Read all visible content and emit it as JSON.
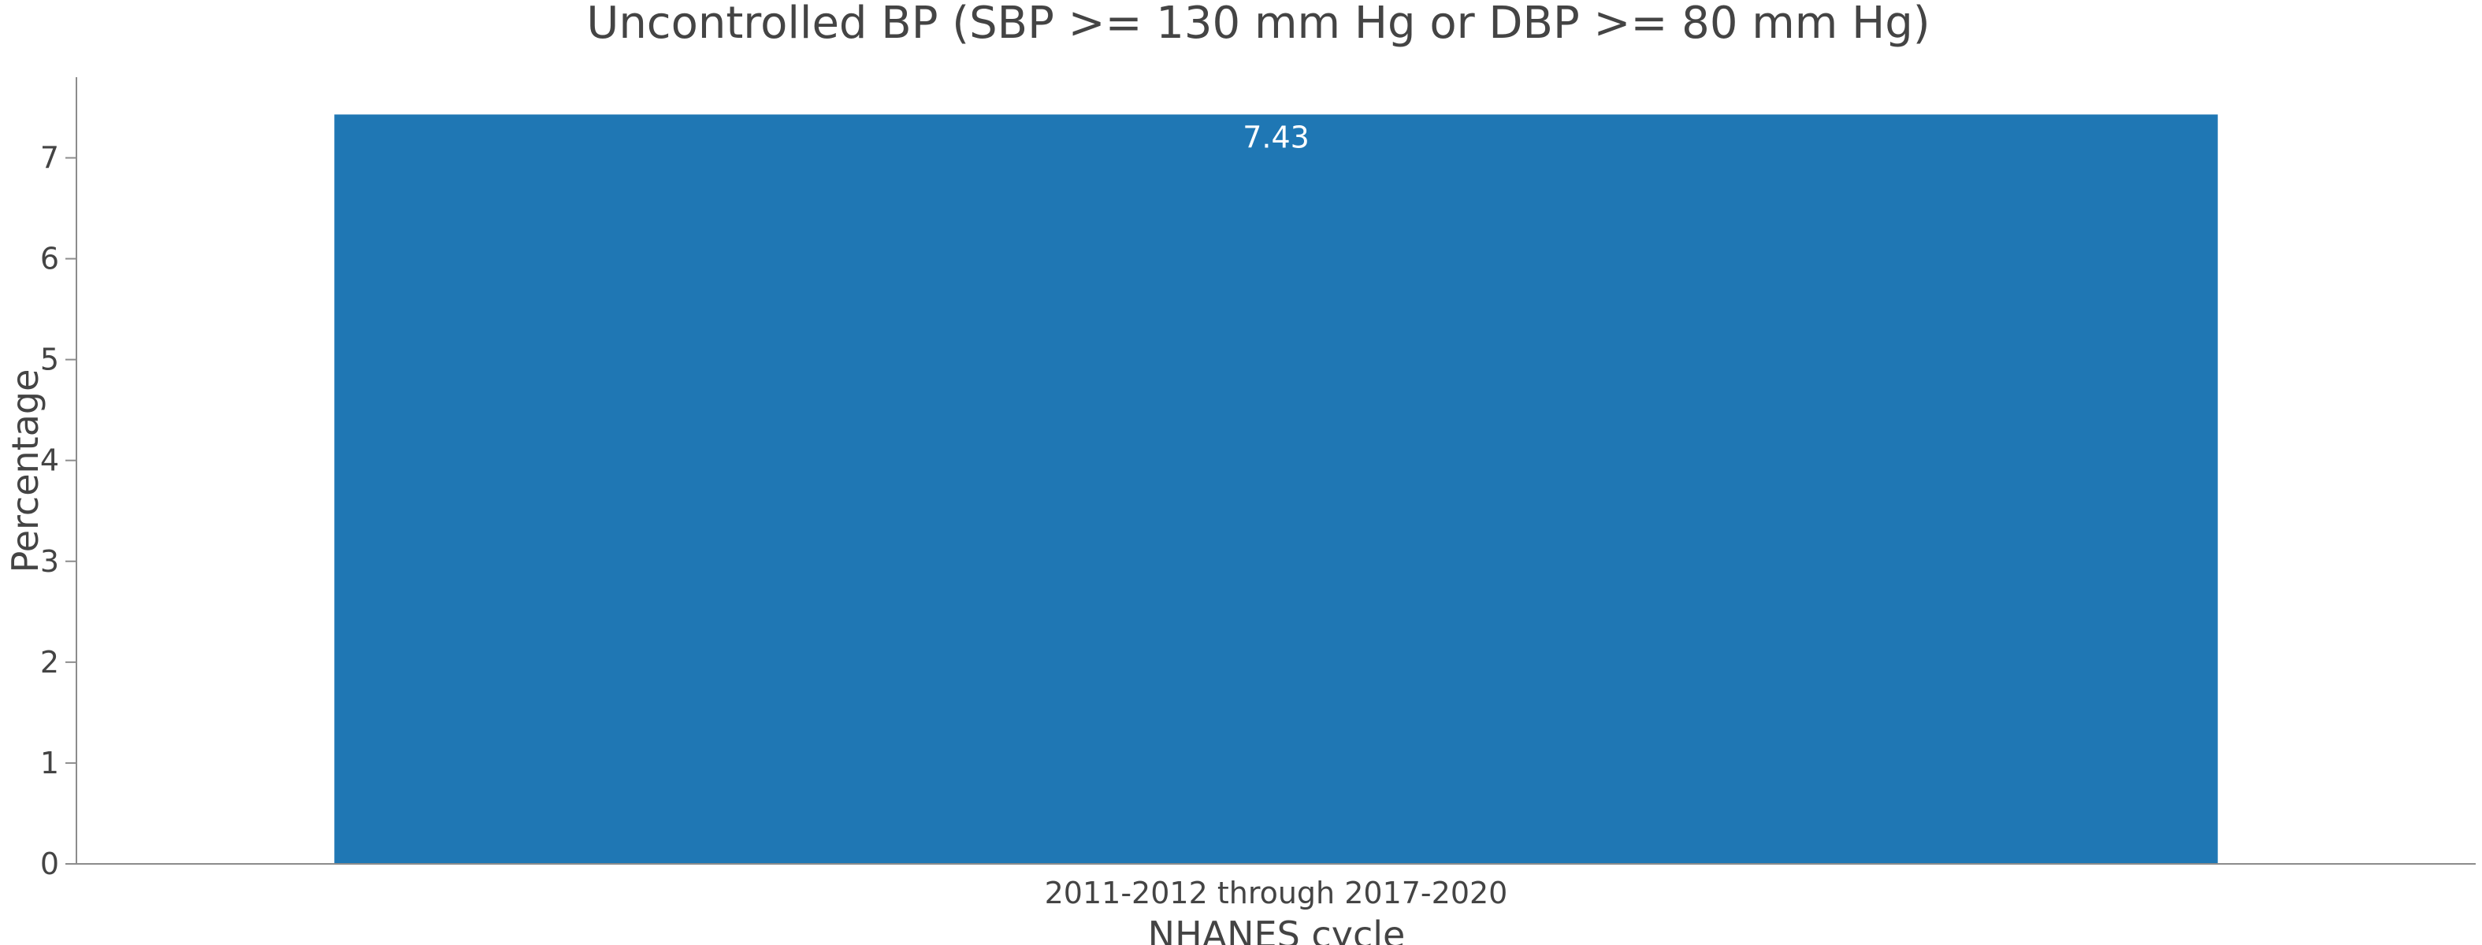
{
  "chart_data": {
    "type": "bar",
    "title": "Uncontrolled BP (SBP >= 130 mm Hg or DBP >= 80 mm Hg)",
    "xlabel": "NHANES cycle",
    "ylabel": "Percentage",
    "categories": [
      "2011-2012 through 2017-2020"
    ],
    "values": [
      7.43
    ],
    "data_labels": [
      "7.43"
    ],
    "yticks": [
      0,
      1,
      2,
      3,
      4,
      5,
      6,
      7
    ],
    "ylim": [
      0,
      7.8
    ],
    "grid": false,
    "legend": "none",
    "bar_color": "#1f77b4"
  }
}
